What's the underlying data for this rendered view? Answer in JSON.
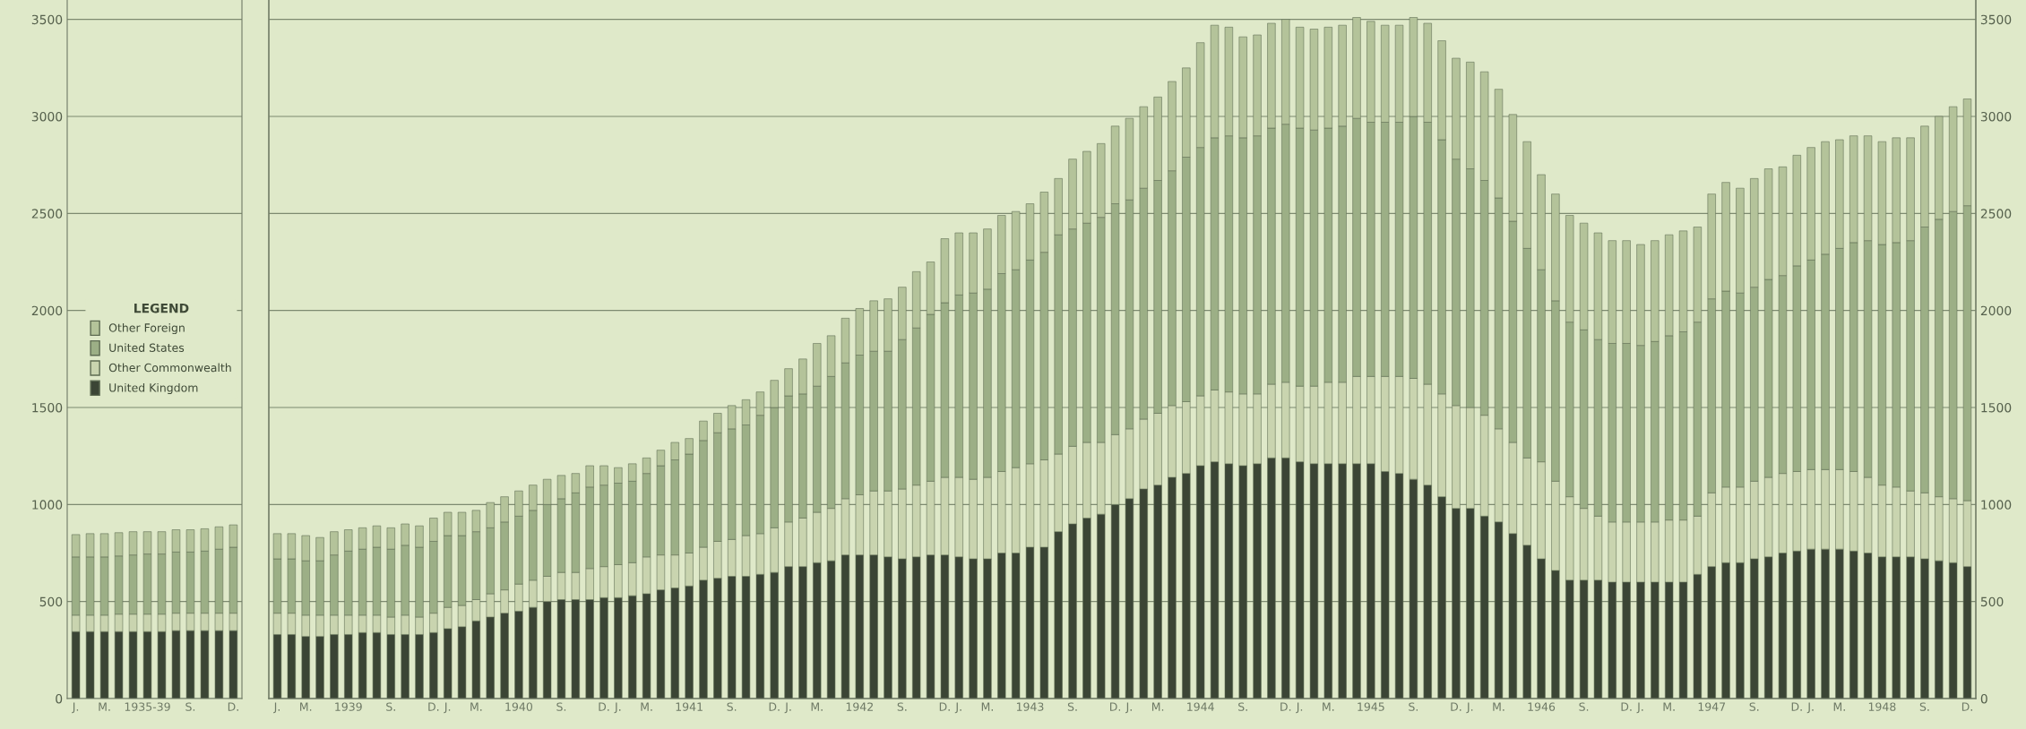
{
  "chart_data": [
    {
      "type": "bar",
      "stacked": true,
      "grid": "y",
      "legend": "center right",
      "legend_title": "LEGEND",
      "categories": [
        "J.",
        null,
        "M.",
        null,
        null,
        "1935-39",
        null,
        null,
        "S.",
        null,
        null,
        "D."
      ],
      "ylim": [
        0,
        3600
      ],
      "yticks": [
        0,
        500,
        1000,
        1500,
        2000,
        2500,
        3000,
        3500
      ],
      "series": [
        {
          "name": "United Kingdom",
          "color": "#3b4535",
          "values": [
            345,
            345,
            345,
            345,
            345,
            345,
            345,
            350,
            350,
            350,
            350,
            350
          ]
        },
        {
          "name": "Other Commonwealth",
          "color": "#c9d4af",
          "values": [
            85,
            85,
            85,
            90,
            90,
            90,
            90,
            90,
            90,
            90,
            90,
            90
          ]
        },
        {
          "name": "United States",
          "color": "#9caf86",
          "values": [
            300,
            300,
            300,
            300,
            305,
            310,
            310,
            315,
            315,
            320,
            330,
            340
          ]
        },
        {
          "name": "Other Foreign",
          "color": "#b4c39a",
          "values": [
            115,
            120,
            120,
            120,
            120,
            115,
            115,
            115,
            115,
            115,
            115,
            115
          ]
        }
      ]
    },
    {
      "type": "bar",
      "stacked": true,
      "grid": "y",
      "categories": [
        "J.",
        null,
        "M.",
        null,
        null,
        "1939",
        null,
        null,
        "S.",
        null,
        null,
        "D.",
        "J.",
        null,
        "M.",
        null,
        null,
        "1940",
        null,
        null,
        "S.",
        null,
        null,
        "D.",
        "J.",
        null,
        "M.",
        null,
        null,
        "1941",
        null,
        null,
        "S.",
        null,
        null,
        "D.",
        "J.",
        null,
        "M.",
        null,
        null,
        "1942",
        null,
        null,
        "S.",
        null,
        null,
        "D.",
        "J.",
        null,
        "M.",
        null,
        null,
        "1943",
        null,
        null,
        "S.",
        null,
        null,
        "D.",
        "J.",
        null,
        "M.",
        null,
        null,
        "1944",
        null,
        null,
        "S.",
        null,
        null,
        "D.",
        "J.",
        null,
        "M.",
        null,
        null,
        "1945",
        null,
        null,
        "S.",
        null,
        null,
        "D.",
        "J.",
        null,
        "M.",
        null,
        null,
        "1946",
        null,
        null,
        "S.",
        null,
        null,
        "D.",
        "J.",
        null,
        "M.",
        null,
        null,
        "1947",
        null,
        null,
        "S.",
        null,
        null,
        "D.",
        "J.",
        null,
        "M.",
        null,
        null,
        "1948",
        null,
        null,
        "S.",
        null,
        null,
        "D."
      ],
      "y2lim": [
        0,
        3600
      ],
      "y2ticks": [
        0,
        500,
        1000,
        1500,
        2000,
        2500,
        3000,
        3500
      ],
      "series": [
        {
          "axis": "y2",
          "color": "#3b4535",
          "values": [
            330,
            330,
            320,
            320,
            330,
            330,
            340,
            340,
            330,
            330,
            330,
            340,
            360,
            370,
            400,
            420,
            440,
            450,
            470,
            500,
            510,
            510,
            510,
            520,
            520,
            530,
            540,
            560,
            570,
            580,
            610,
            620,
            630,
            630,
            640,
            650,
            680,
            680,
            700,
            710,
            740,
            740,
            740,
            730,
            720,
            730,
            740,
            740,
            730,
            720,
            720,
            750,
            750,
            780,
            780,
            860,
            900,
            930,
            950,
            1000,
            1030,
            1080,
            1100,
            1140,
            1160,
            1200,
            1220,
            1210,
            1200,
            1210,
            1240,
            1240,
            1220,
            1210,
            1210,
            1210,
            1210,
            1210,
            1170,
            1160,
            1130,
            1100,
            1040,
            980,
            980,
            940,
            910,
            850,
            790,
            720,
            660,
            610,
            610,
            610,
            600,
            600,
            600,
            600,
            600,
            600,
            640,
            680,
            700,
            700,
            720,
            730,
            750,
            760,
            770,
            770,
            770,
            760,
            750,
            730,
            730,
            730,
            720,
            710,
            700,
            680
          ]
        },
        {
          "axis": "y2",
          "color": "#c9d4af",
          "values": [
            110,
            110,
            110,
            110,
            100,
            100,
            90,
            90,
            90,
            100,
            90,
            100,
            110,
            110,
            110,
            120,
            120,
            140,
            140,
            130,
            140,
            140,
            160,
            160,
            170,
            170,
            190,
            180,
            170,
            170,
            170,
            190,
            190,
            210,
            210,
            230,
            230,
            250,
            260,
            270,
            290,
            310,
            330,
            340,
            360,
            370,
            380,
            400,
            410,
            410,
            420,
            420,
            440,
            430,
            450,
            400,
            400,
            390,
            370,
            360,
            360,
            360,
            370,
            370,
            370,
            360,
            370,
            370,
            370,
            360,
            380,
            390,
            390,
            400,
            420,
            420,
            450,
            450,
            490,
            500,
            520,
            520,
            530,
            530,
            520,
            520,
            480,
            470,
            450,
            500,
            460,
            430,
            370,
            330,
            310,
            310,
            310,
            310,
            320,
            320,
            300,
            380,
            390,
            390,
            400,
            410,
            410,
            410,
            410,
            410,
            410,
            410,
            390,
            370,
            360,
            340,
            340,
            330,
            330,
            340
          ]
        },
        {
          "axis": "y2",
          "color": "#9caf86",
          "values": [
            280,
            280,
            280,
            280,
            310,
            330,
            340,
            350,
            350,
            360,
            360,
            370,
            370,
            360,
            350,
            340,
            350,
            350,
            360,
            370,
            380,
            410,
            420,
            420,
            420,
            420,
            430,
            460,
            490,
            510,
            550,
            560,
            570,
            570,
            610,
            620,
            650,
            640,
            650,
            680,
            700,
            720,
            720,
            720,
            770,
            810,
            860,
            900,
            940,
            960,
            970,
            1020,
            1020,
            1050,
            1070,
            1130,
            1120,
            1130,
            1160,
            1190,
            1180,
            1190,
            1200,
            1210,
            1260,
            1280,
            1300,
            1320,
            1320,
            1330,
            1320,
            1330,
            1330,
            1320,
            1310,
            1320,
            1330,
            1310,
            1310,
            1310,
            1350,
            1350,
            1310,
            1270,
            1230,
            1210,
            1190,
            1140,
            1080,
            990,
            930,
            900,
            920,
            910,
            920,
            920,
            910,
            930,
            950,
            970,
            1000,
            1000,
            1010,
            1000,
            1000,
            1020,
            1020,
            1060,
            1080,
            1110,
            1140,
            1180,
            1220,
            1240,
            1260,
            1290,
            1370,
            1430,
            1480,
            1520
          ]
        },
        {
          "axis": "y2",
          "color": "#b4c39a",
          "values": [
            130,
            130,
            130,
            120,
            120,
            110,
            110,
            110,
            110,
            110,
            110,
            120,
            120,
            120,
            110,
            130,
            130,
            130,
            130,
            130,
            120,
            100,
            110,
            100,
            80,
            90,
            80,
            80,
            90,
            80,
            100,
            100,
            120,
            130,
            120,
            140,
            140,
            180,
            220,
            210,
            230,
            240,
            260,
            270,
            270,
            290,
            270,
            330,
            320,
            310,
            310,
            300,
            300,
            290,
            310,
            290,
            360,
            370,
            380,
            400,
            420,
            420,
            430,
            460,
            460,
            540,
            580,
            560,
            520,
            520,
            540,
            540,
            520,
            520,
            520,
            520,
            520,
            520,
            500,
            500,
            510,
            510,
            510,
            520,
            550,
            560,
            560,
            550,
            550,
            490,
            550,
            550,
            550,
            550,
            530,
            530,
            520,
            520,
            520,
            520,
            490,
            540,
            560,
            540,
            560,
            570,
            560,
            570,
            580,
            580,
            560,
            550,
            540,
            530,
            540,
            530,
            520,
            530,
            540,
            550
          ]
        }
      ]
    }
  ]
}
